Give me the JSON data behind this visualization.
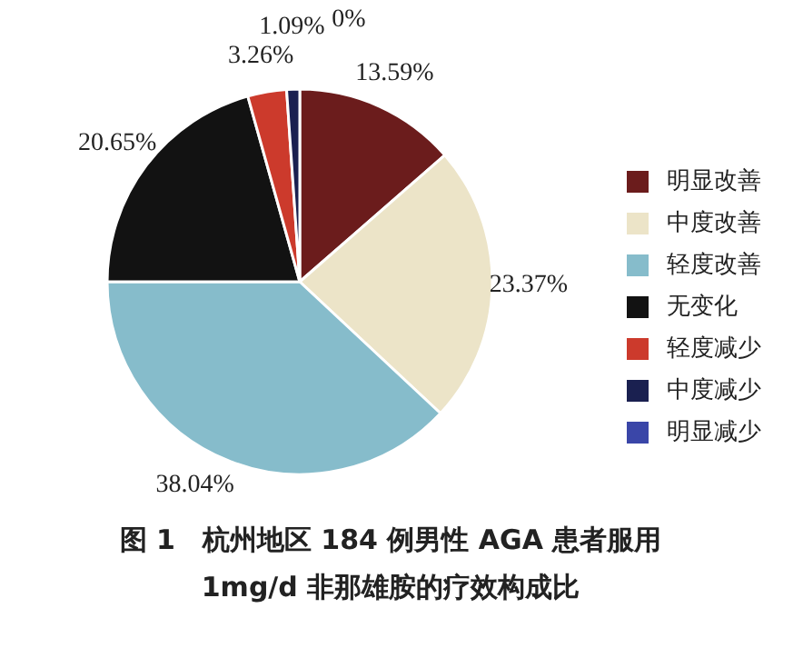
{
  "chart_data": {
    "type": "pie",
    "title": "图 1　杭州地区 184 例男性 AGA 患者服用 1mg/d 非那雄胺的疗效构成比",
    "categories": [
      "明显改善",
      "中度改善",
      "轻度改善",
      "无变化",
      "轻度减少",
      "中度减少",
      "明显减少"
    ],
    "values": [
      13.59,
      23.37,
      38.04,
      20.65,
      3.26,
      1.09,
      0
    ],
    "value_labels": [
      "13.59%",
      "23.37%",
      "38.04%",
      "20.65%",
      "3.26%",
      "1.09%",
      "0%"
    ],
    "colors": [
      "#6b1c1c",
      "#ece4c8",
      "#86bccb",
      "#121212",
      "#cc3a2c",
      "#1a2050",
      "#3a46a8"
    ],
    "legend": "right"
  }
}
